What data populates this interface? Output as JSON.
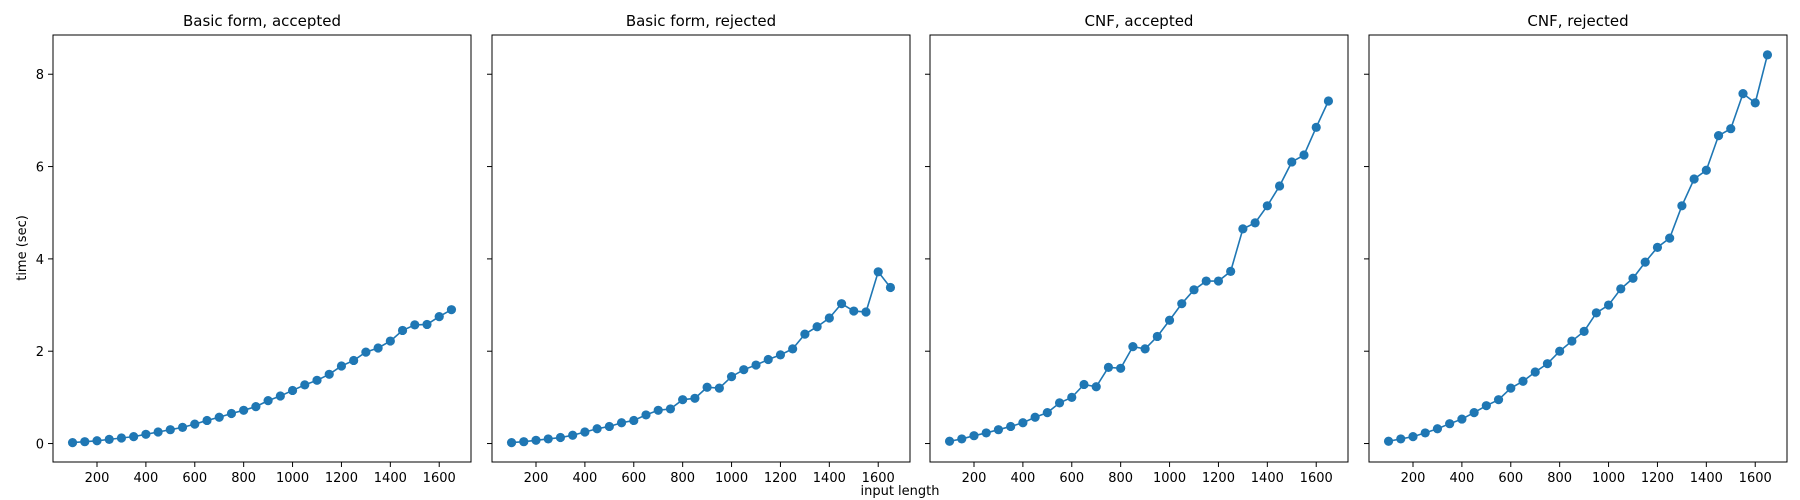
{
  "figure": {
    "xlabel": "input length",
    "ylabel": "time (sec)",
    "series_color": "#1f77b4"
  },
  "chart_data": [
    {
      "type": "line",
      "title": "Basic form, accepted",
      "xlim": [
        20,
        1730
      ],
      "ylim": [
        -0.4,
        8.85
      ],
      "xticks": [
        200,
        400,
        600,
        800,
        1000,
        1200,
        1400,
        1600
      ],
      "yticks": [
        0,
        2,
        4,
        6,
        8
      ],
      "marker": "circle",
      "x": [
        100,
        150,
        200,
        250,
        300,
        350,
        400,
        450,
        500,
        550,
        600,
        650,
        700,
        750,
        800,
        850,
        900,
        950,
        1000,
        1050,
        1100,
        1150,
        1200,
        1250,
        1300,
        1350,
        1400,
        1450,
        1500,
        1550,
        1600,
        1650
      ],
      "y": [
        0.02,
        0.04,
        0.06,
        0.09,
        0.12,
        0.15,
        0.2,
        0.25,
        0.3,
        0.35,
        0.42,
        0.5,
        0.57,
        0.65,
        0.72,
        0.8,
        0.93,
        1.03,
        1.15,
        1.27,
        1.37,
        1.5,
        1.68,
        1.8,
        1.98,
        2.07,
        2.22,
        2.45,
        2.57,
        2.58,
        2.75,
        2.9
      ]
    },
    {
      "type": "line",
      "title": "Basic form, rejected",
      "xlim": [
        20,
        1730
      ],
      "ylim": [
        -0.4,
        8.85
      ],
      "xticks": [
        200,
        400,
        600,
        800,
        1000,
        1200,
        1400,
        1600
      ],
      "yticks": [
        0,
        2,
        4,
        6,
        8
      ],
      "marker": "circle",
      "x": [
        100,
        150,
        200,
        250,
        300,
        350,
        400,
        450,
        500,
        550,
        600,
        650,
        700,
        750,
        800,
        850,
        900,
        950,
        1000,
        1050,
        1100,
        1150,
        1200,
        1250,
        1300,
        1350,
        1400,
        1450,
        1500,
        1550,
        1600,
        1650
      ],
      "y": [
        0.02,
        0.04,
        0.07,
        0.1,
        0.13,
        0.18,
        0.25,
        0.32,
        0.37,
        0.45,
        0.5,
        0.62,
        0.72,
        0.75,
        0.95,
        0.98,
        1.22,
        1.2,
        1.45,
        1.6,
        1.7,
        1.82,
        1.92,
        2.05,
        2.37,
        2.53,
        2.72,
        3.03,
        2.87,
        2.85,
        3.72,
        3.38
      ]
    },
    {
      "type": "line",
      "title": "CNF, accepted",
      "xlim": [
        20,
        1730
      ],
      "ylim": [
        -0.4,
        8.85
      ],
      "xticks": [
        200,
        400,
        600,
        800,
        1000,
        1200,
        1400,
        1600
      ],
      "yticks": [
        0,
        2,
        4,
        6,
        8
      ],
      "marker": "circle",
      "x": [
        100,
        150,
        200,
        250,
        300,
        350,
        400,
        450,
        500,
        550,
        600,
        650,
        700,
        750,
        800,
        850,
        900,
        950,
        1000,
        1050,
        1100,
        1150,
        1200,
        1250,
        1300,
        1350,
        1400,
        1450,
        1500,
        1550,
        1600,
        1650
      ],
      "y": [
        0.05,
        0.1,
        0.17,
        0.23,
        0.3,
        0.37,
        0.45,
        0.57,
        0.67,
        0.88,
        1.0,
        1.28,
        1.23,
        1.65,
        1.63,
        2.1,
        2.05,
        2.32,
        2.67,
        3.03,
        3.33,
        3.52,
        3.52,
        3.73,
        4.65,
        4.78,
        5.15,
        5.58,
        6.1,
        6.25,
        6.85,
        7.42
      ]
    },
    {
      "type": "line",
      "title": "CNF, rejected",
      "xlim": [
        20,
        1730
      ],
      "ylim": [
        -0.4,
        8.85
      ],
      "xticks": [
        200,
        400,
        600,
        800,
        1000,
        1200,
        1400,
        1600
      ],
      "yticks": [
        0,
        2,
        4,
        6,
        8
      ],
      "marker": "circle",
      "x": [
        100,
        150,
        200,
        250,
        300,
        350,
        400,
        450,
        500,
        550,
        600,
        650,
        700,
        750,
        800,
        850,
        900,
        950,
        1000,
        1050,
        1100,
        1150,
        1200,
        1250,
        1300,
        1350,
        1400,
        1450,
        1500,
        1550,
        1600,
        1650
      ],
      "y": [
        0.05,
        0.1,
        0.15,
        0.23,
        0.32,
        0.43,
        0.53,
        0.67,
        0.82,
        0.95,
        1.2,
        1.35,
        1.55,
        1.73,
        2.0,
        2.22,
        2.43,
        2.83,
        3.0,
        3.35,
        3.58,
        3.93,
        4.25,
        4.45,
        5.15,
        5.73,
        5.92,
        6.67,
        6.82,
        7.58,
        7.38,
        8.42
      ]
    }
  ]
}
